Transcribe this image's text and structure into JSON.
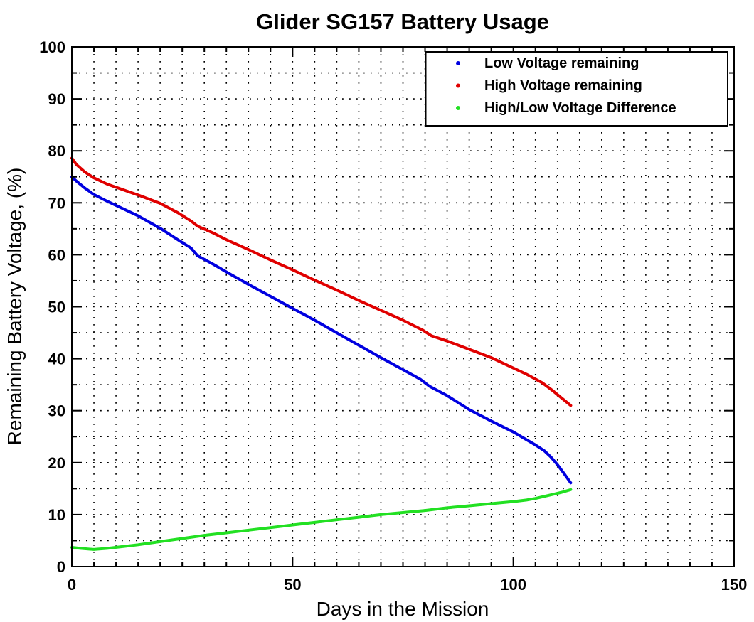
{
  "figure": {
    "background": "#ffffff",
    "axes_box_color": "#000000",
    "grid_style": "dotted black, every 5 units on both axes"
  },
  "chart_data": {
    "type": "line",
    "title": "Glider SG157 Battery Usage",
    "xlabel": "Days in the Mission",
    "ylabel": "Remaining Battery Voltage, (%)",
    "xlim": [
      0,
      150
    ],
    "ylim": [
      0,
      100
    ],
    "x_major_ticks": [
      0,
      50,
      100,
      150
    ],
    "x_tick_labels": [
      "0",
      "50",
      "100",
      "150"
    ],
    "y_major_ticks": [
      0,
      10,
      20,
      30,
      40,
      50,
      60,
      70,
      80,
      90,
      100
    ],
    "y_tick_labels": [
      "0",
      "10",
      "20",
      "30",
      "40",
      "50",
      "60",
      "70",
      "80",
      "90",
      "100"
    ],
    "minor_tick_step": 5,
    "grid": true,
    "legend_position": "top-right",
    "series": [
      {
        "name": "Low Voltage remaining",
        "color": "#0000e0",
        "points": [
          [
            0,
            75
          ],
          [
            1,
            74.2
          ],
          [
            3,
            72.8
          ],
          [
            5,
            71.6
          ],
          [
            8,
            70.3
          ],
          [
            12,
            68.7
          ],
          [
            15,
            67.5
          ],
          [
            20,
            65.1
          ],
          [
            24,
            62.9
          ],
          [
            27,
            61.3
          ],
          [
            28.5,
            59.8
          ],
          [
            32,
            58.2
          ],
          [
            35,
            56.7
          ],
          [
            40,
            54.3
          ],
          [
            45,
            52
          ],
          [
            50,
            49.7
          ],
          [
            55,
            47.4
          ],
          [
            60,
            45
          ],
          [
            65,
            42.6
          ],
          [
            70,
            40.2
          ],
          [
            75,
            37.9
          ],
          [
            79,
            36
          ],
          [
            81,
            34.7
          ],
          [
            85,
            32.9
          ],
          [
            90,
            30.2
          ],
          [
            95,
            28
          ],
          [
            100,
            25.9
          ],
          [
            103,
            24.4
          ],
          [
            105,
            23.4
          ],
          [
            107,
            22.3
          ],
          [
            108.5,
            21.1
          ],
          [
            110,
            19.6
          ],
          [
            111.5,
            17.9
          ],
          [
            113,
            16.1
          ]
        ]
      },
      {
        "name": "High Voltage remaining",
        "color": "#e00000",
        "points": [
          [
            0,
            78.6
          ],
          [
            1,
            77.4
          ],
          [
            3,
            75.9
          ],
          [
            5,
            74.8
          ],
          [
            8,
            73.6
          ],
          [
            12,
            72.4
          ],
          [
            15,
            71.5
          ],
          [
            20,
            69.9
          ],
          [
            24,
            68.1
          ],
          [
            27,
            66.5
          ],
          [
            28.5,
            65.5
          ],
          [
            32,
            64.2
          ],
          [
            35,
            62.9
          ],
          [
            40,
            61
          ],
          [
            45,
            59
          ],
          [
            50,
            57.1
          ],
          [
            55,
            55.1
          ],
          [
            60,
            53.2
          ],
          [
            65,
            51.2
          ],
          [
            70,
            49.3
          ],
          [
            75,
            47.4
          ],
          [
            79.5,
            45.5
          ],
          [
            81.5,
            44.4
          ],
          [
            85,
            43.4
          ],
          [
            90,
            41.8
          ],
          [
            95,
            40.2
          ],
          [
            99,
            38.6
          ],
          [
            103,
            37
          ],
          [
            106.5,
            35.4
          ],
          [
            109,
            33.8
          ],
          [
            111,
            32.4
          ],
          [
            113,
            31
          ]
        ]
      },
      {
        "name": "High/Low Voltage Difference",
        "color": "#22e022",
        "points": [
          [
            0,
            3.7
          ],
          [
            2,
            3.5
          ],
          [
            5,
            3.3
          ],
          [
            8,
            3.5
          ],
          [
            12,
            3.9
          ],
          [
            15,
            4.2
          ],
          [
            20,
            4.8
          ],
          [
            25,
            5.4
          ],
          [
            30,
            6
          ],
          [
            35,
            6.5
          ],
          [
            40,
            7
          ],
          [
            45,
            7.5
          ],
          [
            50,
            8
          ],
          [
            55,
            8.5
          ],
          [
            60,
            9
          ],
          [
            65,
            9.5
          ],
          [
            70,
            10
          ],
          [
            75,
            10.4
          ],
          [
            80,
            10.8
          ],
          [
            85,
            11.3
          ],
          [
            90,
            11.7
          ],
          [
            95,
            12.1
          ],
          [
            100,
            12.5
          ],
          [
            103,
            12.8
          ],
          [
            105,
            13.1
          ],
          [
            107,
            13.5
          ],
          [
            109,
            13.9
          ],
          [
            111,
            14.3
          ],
          [
            113,
            14.8
          ]
        ]
      }
    ]
  }
}
